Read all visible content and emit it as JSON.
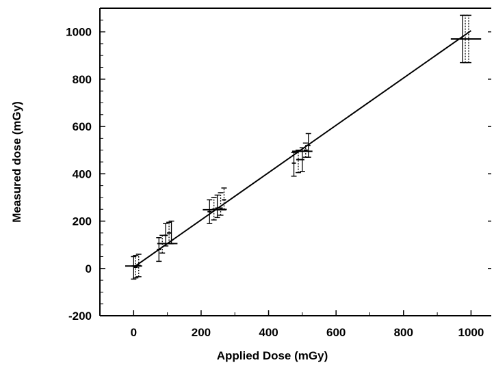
{
  "chart_data": {
    "type": "scatter",
    "title": "",
    "xlabel": "Applied Dose (mGy)",
    "ylabel": "Measured dose (mGy)",
    "xlim": [
      -100,
      1060
    ],
    "ylim": [
      -200,
      1100
    ],
    "x_ticks": [
      0,
      200,
      400,
      600,
      800,
      1000
    ],
    "y_ticks": [
      -200,
      0,
      200,
      400,
      600,
      800,
      1000
    ],
    "x_tick_labels": [
      "0",
      "200",
      "400",
      "600",
      "800",
      "1000"
    ],
    "y_tick_labels": [
      "-200",
      "0",
      "200",
      "400",
      "600",
      "800",
      "1000"
    ],
    "grid": false,
    "fit_line": {
      "x": [
        0,
        1000
      ],
      "y": [
        5,
        1005
      ]
    },
    "points": [
      {
        "x": 0,
        "y": 10,
        "ylow": -45,
        "yhigh": 50,
        "style": "solid"
      },
      {
        "x": 6,
        "y": 5,
        "ylow": -40,
        "yhigh": 55,
        "style": "dotted"
      },
      {
        "x": 15,
        "y": 12,
        "ylow": -35,
        "yhigh": 60,
        "style": "dotted"
      },
      {
        "x": 75,
        "y": 80,
        "ylow": 30,
        "yhigh": 130,
        "style": "solid"
      },
      {
        "x": 85,
        "y": 105,
        "ylow": 65,
        "yhigh": 140,
        "style": "dotted"
      },
      {
        "x": 95,
        "y": 140,
        "ylow": 95,
        "yhigh": 190,
        "style": "solid"
      },
      {
        "x": 105,
        "y": 150,
        "ylow": 105,
        "yhigh": 195,
        "style": "dotted"
      },
      {
        "x": 112,
        "y": 105,
        "ylow": 105,
        "yhigh": 200,
        "style": "solid"
      },
      {
        "x": 225,
        "y": 240,
        "ylow": 190,
        "yhigh": 290,
        "style": "solid"
      },
      {
        "x": 238,
        "y": 250,
        "ylow": 205,
        "yhigh": 300,
        "style": "dotted"
      },
      {
        "x": 248,
        "y": 255,
        "ylow": 215,
        "yhigh": 310,
        "style": "solid"
      },
      {
        "x": 258,
        "y": 255,
        "ylow": 225,
        "yhigh": 320,
        "style": "dotted"
      },
      {
        "x": 268,
        "y": 290,
        "ylow": 250,
        "yhigh": 340,
        "style": "dotted"
      },
      {
        "x": 475,
        "y": 445,
        "ylow": 390,
        "yhigh": 490,
        "style": "solid"
      },
      {
        "x": 488,
        "y": 460,
        "ylow": 405,
        "yhigh": 500,
        "style": "dotted"
      },
      {
        "x": 500,
        "y": 460,
        "ylow": 410,
        "yhigh": 510,
        "style": "solid"
      },
      {
        "x": 510,
        "y": 500,
        "ylow": 470,
        "yhigh": 530,
        "style": "dotted"
      },
      {
        "x": 518,
        "y": 520,
        "ylow": 470,
        "yhigh": 570,
        "style": "solid"
      },
      {
        "x": 975,
        "y": 970,
        "ylow": 870,
        "yhigh": 1070,
        "style": "solid"
      },
      {
        "x": 983,
        "y": 970,
        "ylow": 870,
        "yhigh": 1070,
        "style": "dotted"
      },
      {
        "x": 993,
        "y": 970,
        "ylow": 870,
        "yhigh": 1070,
        "style": "dotted"
      }
    ],
    "horizontal_marks": [
      {
        "x": 0,
        "y": 10,
        "halfwidth": 25
      },
      {
        "x": 100,
        "y": 105,
        "halfwidth": 30
      },
      {
        "x": 240,
        "y": 248,
        "halfwidth": 35
      },
      {
        "x": 500,
        "y": 495,
        "halfwidth": 30
      },
      {
        "x": 985,
        "y": 970,
        "halfwidth": 45
      }
    ]
  }
}
